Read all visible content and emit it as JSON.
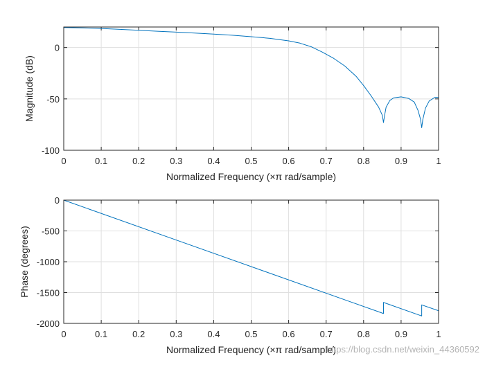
{
  "watermark": "https://blog.csdn.net/weixin_44360592",
  "chart_data": [
    {
      "type": "line",
      "xlabel": "Normalized Frequency  (×π rad/sample)",
      "ylabel": "Magnitude (dB)",
      "xlim": [
        0,
        1
      ],
      "ylim": [
        -100,
        20
      ],
      "xticks": [
        "0",
        "0.1",
        "0.2",
        "0.3",
        "0.4",
        "0.5",
        "0.6",
        "0.7",
        "0.8",
        "0.9",
        "1"
      ],
      "yticks": [
        "0",
        "-50",
        "-100"
      ],
      "ytick_values": [
        0,
        -50,
        -100
      ],
      "grid": true,
      "color": "#0072bd",
      "series": [
        {
          "x": [
            0,
            0.05,
            0.1,
            0.15,
            0.2,
            0.25,
            0.3,
            0.35,
            0.4,
            0.45,
            0.5,
            0.55,
            0.6,
            0.63,
            0.66,
            0.69,
            0.72,
            0.75,
            0.78,
            0.8,
            0.82,
            0.84,
            0.85,
            0.853,
            0.856,
            0.86,
            0.87,
            0.88,
            0.9,
            0.92,
            0.935,
            0.945,
            0.952,
            0.955,
            0.958,
            0.965,
            0.975,
            0.99,
            1.0
          ],
          "values": [
            19.5,
            19.2,
            18.6,
            17.7,
            16.8,
            15.9,
            15.0,
            14.1,
            13.1,
            12.0,
            10.6,
            9.0,
            6.5,
            4.3,
            0.8,
            -4.5,
            -10.5,
            -18.0,
            -28.0,
            -37.0,
            -47.0,
            -58.0,
            -66.0,
            -73.0,
            -66.0,
            -58.0,
            -51.5,
            -49.0,
            -48.0,
            -49.5,
            -53.0,
            -61.0,
            -70.0,
            -78.0,
            -70.0,
            -59.0,
            -52.0,
            -48.5,
            -48.5
          ]
        }
      ]
    },
    {
      "type": "line",
      "xlabel": "Normalized Frequency  (×π rad/sample)",
      "ylabel": "Phase (degrees)",
      "xlim": [
        0,
        1
      ],
      "ylim": [
        -2000,
        0
      ],
      "xticks": [
        "0",
        "0.1",
        "0.2",
        "0.3",
        "0.4",
        "0.5",
        "0.6",
        "0.7",
        "0.8",
        "0.9",
        "1"
      ],
      "yticks": [
        "0",
        "-500",
        "-1000",
        "-1500",
        "-2000"
      ],
      "ytick_values": [
        0,
        -500,
        -1000,
        -1500,
        -2000
      ],
      "grid": true,
      "color": "#0072bd",
      "series": [
        {
          "x": [
            0,
            0.853,
            0.853,
            0.955,
            0.955,
            1.0
          ],
          "values": [
            0,
            -1840,
            -1660,
            -1880,
            -1700,
            -1795
          ]
        }
      ]
    }
  ]
}
